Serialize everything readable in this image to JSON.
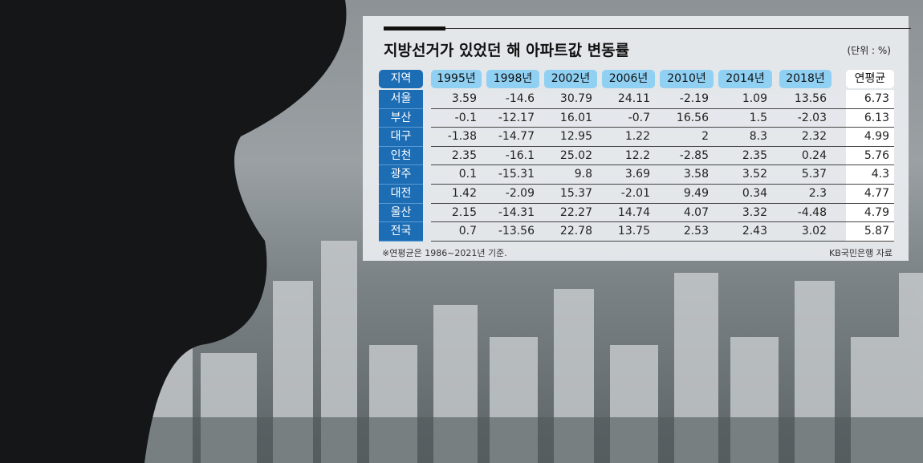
{
  "header": {
    "title": "지방선거가 있었던 해 아파트값 변동률",
    "unit": "(단위 : %)"
  },
  "table": {
    "columns": [
      "지역",
      "1995년",
      "1998년",
      "2002년",
      "2006년",
      "2010년",
      "2014년",
      "2018년",
      "연평균"
    ],
    "rows": [
      [
        "서울",
        3.59,
        -14.6,
        30.79,
        24.11,
        -2.19,
        1.09,
        13.56,
        6.73
      ],
      [
        "부산",
        -0.1,
        -12.17,
        16.01,
        -0.7,
        16.56,
        1.5,
        -2.03,
        6.13
      ],
      [
        "대구",
        -1.38,
        -14.77,
        12.95,
        1.22,
        2,
        8.3,
        2.32,
        4.99
      ],
      [
        "인천",
        2.35,
        -16.1,
        25.02,
        12.2,
        -2.85,
        2.35,
        0.24,
        5.76
      ],
      [
        "광주",
        0.1,
        -15.31,
        9.8,
        3.69,
        3.58,
        3.52,
        5.37,
        4.3
      ],
      [
        "대전",
        1.42,
        -2.09,
        15.37,
        -2.01,
        9.49,
        0.34,
        2.3,
        4.77
      ],
      [
        "울산",
        2.15,
        -14.31,
        22.27,
        14.74,
        4.07,
        3.32,
        -4.48,
        4.79
      ],
      [
        "전국",
        0.7,
        -13.56,
        22.78,
        13.75,
        2.53,
        2.43,
        3.02,
        5.87
      ]
    ]
  },
  "footer": {
    "note": "※연평균은 1986~2021년 기준.",
    "source": "KB국민은행 자료"
  }
}
